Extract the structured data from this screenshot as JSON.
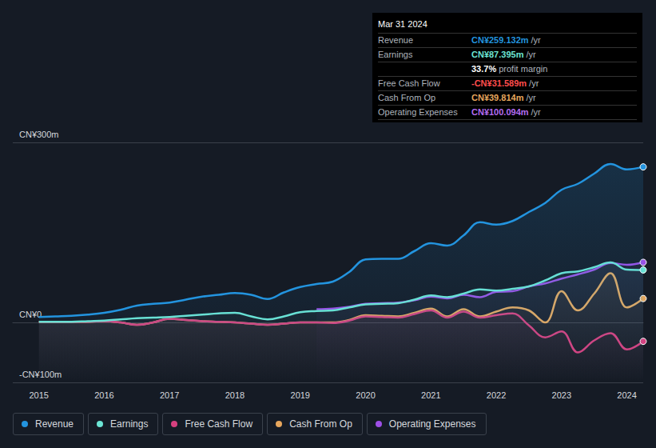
{
  "chart_data": {
    "type": "line",
    "x": [
      2015,
      2015.25,
      2015.5,
      2015.75,
      2016,
      2016.25,
      2016.5,
      2016.75,
      2017,
      2017.25,
      2017.5,
      2017.75,
      2018,
      2018.25,
      2018.5,
      2018.75,
      2019,
      2019.25,
      2019.5,
      2019.75,
      2020,
      2020.25,
      2020.5,
      2020.75,
      2021,
      2021.25,
      2021.5,
      2021.75,
      2022,
      2022.25,
      2022.5,
      2022.75,
      2023,
      2023.25,
      2023.5,
      2023.75,
      2024,
      2024.25
    ],
    "series": [
      {
        "name": "Revenue",
        "color": "#2394df",
        "values": [
          9,
          10,
          11,
          13,
          16,
          21,
          28,
          31,
          33,
          38,
          43,
          46,
          49,
          46,
          39,
          50,
          59,
          64,
          68,
          84,
          105,
          106,
          106,
          119,
          132,
          128,
          145,
          167,
          163,
          169,
          184,
          199,
          221,
          231,
          248,
          264,
          255,
          259.132
        ]
      },
      {
        "name": "Earnings",
        "color": "#6ce5d4",
        "values": [
          1,
          1,
          1,
          2,
          3,
          5,
          7,
          8,
          9,
          11,
          13,
          15,
          16,
          10,
          5,
          10,
          17,
          19,
          20,
          25,
          30,
          31,
          32,
          38,
          45,
          42,
          48,
          55,
          53,
          56,
          60,
          70,
          82,
          85,
          92,
          100,
          88,
          87.395
        ]
      },
      {
        "name": "Free Cash Flow",
        "color": "#d6407f",
        "values": [
          1,
          1,
          1,
          1,
          2,
          0,
          -4,
          0,
          6,
          4,
          2,
          1,
          0,
          -2,
          -4,
          -2,
          0,
          0,
          -1,
          3,
          10,
          9,
          8,
          14,
          20,
          8,
          18,
          8,
          12,
          15,
          -5,
          -25,
          -15,
          -50,
          -30,
          -18,
          -45,
          -31.589
        ]
      },
      {
        "name": "Cash From Op",
        "color": "#e6a65d",
        "values": [
          1,
          1,
          1,
          1,
          2,
          0,
          -4,
          0,
          6,
          4,
          2,
          1,
          0,
          -2,
          -4,
          -2,
          0,
          0,
          0,
          4,
          12,
          11,
          10,
          16,
          23,
          10,
          22,
          10,
          18,
          25,
          20,
          0,
          52,
          20,
          48,
          82,
          25,
          39.814
        ]
      },
      {
        "name": "Operating Expenses",
        "color": "#9d4fe6",
        "values": [
          null,
          null,
          null,
          null,
          null,
          null,
          null,
          null,
          null,
          null,
          null,
          null,
          null,
          null,
          null,
          null,
          null,
          22,
          23,
          26,
          31,
          32,
          33,
          37,
          43,
          40,
          46,
          42,
          51,
          52,
          60,
          65,
          73,
          80,
          88,
          99,
          96,
          100.094
        ]
      }
    ],
    "xlim": [
      2014.6,
      2024.25
    ],
    "xticks": [
      2015,
      2016,
      2017,
      2018,
      2019,
      2020,
      2021,
      2022,
      2023,
      2024
    ],
    "ylim": [
      -100,
      300
    ],
    "yticks": [
      {
        "value": -100,
        "label": "-CN¥100m"
      },
      {
        "value": 0,
        "label": "CN¥0"
      },
      {
        "value": 300,
        "label": "CN¥300m"
      }
    ],
    "grid": true,
    "legend": "bottom",
    "annotations": {
      "title": "Mar 31 2024",
      "rows": [
        {
          "label": "Revenue",
          "value": "CN¥259.132m",
          "unit": "/yr",
          "color": "#2394df"
        },
        {
          "label": "Earnings",
          "value": "CN¥87.395m",
          "unit": "/yr",
          "color": "#6ce5d4"
        },
        {
          "label": "",
          "value": "33.7%",
          "unit": "profit margin",
          "color": "#ffffff"
        },
        {
          "label": "Free Cash Flow",
          "value": "-CN¥31.589m",
          "unit": "/yr",
          "color": "#ff4d4d"
        },
        {
          "label": "Cash From Op",
          "value": "CN¥39.814m",
          "unit": "/yr",
          "color": "#e6a65d"
        },
        {
          "label": "Operating Expenses",
          "value": "CN¥100.094m",
          "unit": "/yr",
          "color": "#b36cf0"
        }
      ]
    }
  }
}
